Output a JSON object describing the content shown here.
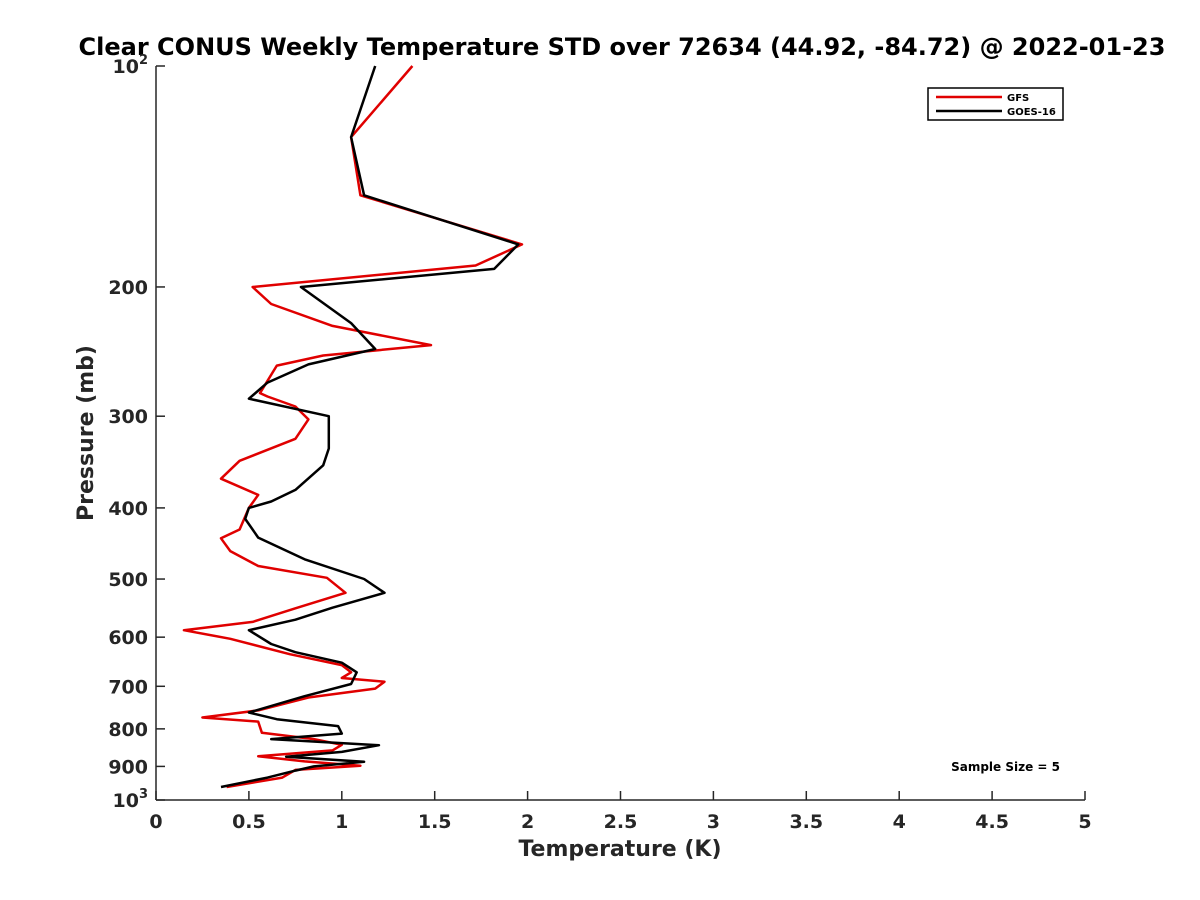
{
  "chart_data": {
    "type": "line",
    "title": "Clear CONUS Weekly Temperature STD over 72634 (44.92, -84.72) @ 2022-01-23",
    "xlabel": "Temperature (K)",
    "ylabel": "Pressure (mb)",
    "xlim": [
      0,
      5
    ],
    "ylim": [
      100,
      1000
    ],
    "y_scale": "log",
    "y_reversed": true,
    "grid": false,
    "legend_position": "top-right",
    "x_ticks": [
      0,
      0.5,
      1,
      1.5,
      2,
      2.5,
      3,
      3.5,
      4,
      4.5,
      5
    ],
    "x_tick_labels": [
      "0",
      "0.5",
      "1",
      "1.5",
      "2",
      "2.5",
      "3",
      "3.5",
      "4",
      "4.5",
      "5"
    ],
    "y_ticks": [
      100,
      200,
      300,
      400,
      500,
      600,
      700,
      800,
      900,
      1000
    ],
    "y_tick_labels": [
      {
        "base": "10",
        "exp": "2"
      },
      {
        "base": "200",
        "exp": ""
      },
      {
        "base": "300",
        "exp": ""
      },
      {
        "base": "400",
        "exp": ""
      },
      {
        "base": "500",
        "exp": ""
      },
      {
        "base": "600",
        "exp": ""
      },
      {
        "base": "700",
        "exp": ""
      },
      {
        "base": "800",
        "exp": ""
      },
      {
        "base": "900",
        "exp": ""
      },
      {
        "base": "10",
        "exp": "3"
      }
    ],
    "annotation": "Sample Size = 5",
    "series": [
      {
        "name": "GFS",
        "color": "#e00000",
        "points": [
          [
            1.38,
            100
          ],
          [
            1.05,
            125
          ],
          [
            1.1,
            150
          ],
          [
            1.97,
            175
          ],
          [
            1.72,
            187
          ],
          [
            0.52,
            200
          ],
          [
            0.62,
            211
          ],
          [
            0.95,
            226
          ],
          [
            1.48,
            240
          ],
          [
            0.9,
            248
          ],
          [
            0.65,
            256
          ],
          [
            0.56,
            279
          ],
          [
            0.6,
            282
          ],
          [
            0.75,
            291
          ],
          [
            0.82,
            303
          ],
          [
            0.75,
            322
          ],
          [
            0.45,
            345
          ],
          [
            0.35,
            365
          ],
          [
            0.55,
            384
          ],
          [
            0.5,
            400
          ],
          [
            0.45,
            428
          ],
          [
            0.35,
            440
          ],
          [
            0.4,
            458
          ],
          [
            0.55,
            480
          ],
          [
            0.92,
            498
          ],
          [
            1.02,
            522
          ],
          [
            0.75,
            548
          ],
          [
            0.52,
            572
          ],
          [
            0.15,
            587
          ],
          [
            0.4,
            603
          ],
          [
            0.72,
            633
          ],
          [
            1.0,
            655
          ],
          [
            1.05,
            670
          ],
          [
            1.0,
            682
          ],
          [
            1.23,
            690
          ],
          [
            1.18,
            705
          ],
          [
            0.82,
            725
          ],
          [
            0.55,
            755
          ],
          [
            0.25,
            772
          ],
          [
            0.55,
            782
          ],
          [
            0.57,
            810
          ],
          [
            0.85,
            826
          ],
          [
            1.0,
            841
          ],
          [
            0.95,
            856
          ],
          [
            0.55,
            872
          ],
          [
            0.8,
            886
          ],
          [
            1.1,
            898
          ],
          [
            0.75,
            910
          ],
          [
            0.68,
            932
          ],
          [
            0.38,
            960
          ]
        ]
      },
      {
        "name": "GOES-16",
        "color": "#000000",
        "points": [
          [
            1.18,
            100
          ],
          [
            1.05,
            125
          ],
          [
            1.12,
            150
          ],
          [
            1.95,
            175
          ],
          [
            1.82,
            189
          ],
          [
            0.78,
            200
          ],
          [
            1.05,
            224
          ],
          [
            1.18,
            243
          ],
          [
            0.82,
            255
          ],
          [
            0.6,
            270
          ],
          [
            0.5,
            284
          ],
          [
            0.93,
            300
          ],
          [
            0.93,
            332
          ],
          [
            0.9,
            350
          ],
          [
            0.75,
            378
          ],
          [
            0.62,
            392
          ],
          [
            0.5,
            400
          ],
          [
            0.48,
            414
          ],
          [
            0.55,
            439
          ],
          [
            0.8,
            470
          ],
          [
            1.12,
            500
          ],
          [
            1.23,
            522
          ],
          [
            0.95,
            547
          ],
          [
            0.75,
            568
          ],
          [
            0.5,
            587
          ],
          [
            0.62,
            613
          ],
          [
            0.75,
            629
          ],
          [
            1.0,
            650
          ],
          [
            1.08,
            670
          ],
          [
            1.05,
            695
          ],
          [
            0.8,
            722
          ],
          [
            0.5,
            760
          ],
          [
            0.65,
            776
          ],
          [
            0.98,
            793
          ],
          [
            1.0,
            812
          ],
          [
            0.62,
            826
          ],
          [
            1.2,
            842
          ],
          [
            1.0,
            860
          ],
          [
            0.7,
            873
          ],
          [
            1.12,
            887
          ],
          [
            0.85,
            900
          ],
          [
            0.75,
            912
          ],
          [
            0.6,
            932
          ],
          [
            0.35,
            960
          ]
        ]
      }
    ]
  }
}
